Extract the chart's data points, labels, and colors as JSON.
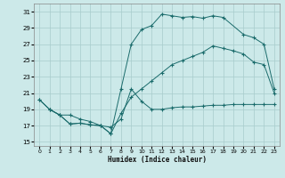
{
  "xlabel": "Humidex (Indice chaleur)",
  "bg_color": "#cce9e9",
  "grid_color": "#a8cccc",
  "line_color": "#1a6b6b",
  "xlim": [
    -0.5,
    23.5
  ],
  "ylim": [
    14.5,
    32
  ],
  "xticks": [
    0,
    1,
    2,
    3,
    4,
    5,
    6,
    7,
    8,
    9,
    10,
    11,
    12,
    13,
    14,
    15,
    16,
    17,
    18,
    19,
    20,
    21,
    22,
    23
  ],
  "yticks": [
    15,
    17,
    19,
    21,
    23,
    25,
    27,
    29,
    31
  ],
  "curve1_x": [
    0,
    1,
    2,
    3,
    4,
    5,
    6,
    7,
    8,
    9,
    10,
    11,
    12,
    13,
    14,
    15,
    16,
    17,
    18,
    20,
    21,
    22,
    23
  ],
  "curve1_y": [
    20.2,
    19.0,
    18.3,
    17.2,
    17.3,
    17.1,
    17.0,
    16.0,
    21.5,
    27.0,
    28.8,
    29.3,
    30.7,
    30.5,
    30.3,
    30.4,
    30.2,
    30.5,
    30.3,
    28.2,
    27.8,
    27.0,
    21.5
  ],
  "curve2_x": [
    0,
    1,
    2,
    3,
    4,
    5,
    6,
    7,
    8,
    9,
    10,
    11,
    12,
    13,
    14,
    15,
    16,
    17,
    18,
    19,
    20,
    21,
    22,
    23
  ],
  "curve2_y": [
    20.2,
    19.0,
    18.3,
    17.2,
    17.3,
    17.1,
    17.0,
    16.0,
    18.5,
    20.5,
    21.5,
    22.5,
    23.5,
    24.5,
    25.0,
    25.5,
    26.0,
    26.8,
    26.5,
    26.2,
    25.8,
    24.8,
    24.5,
    21.0
  ],
  "curve3_x": [
    1,
    2,
    3,
    4,
    5,
    6,
    7,
    8,
    9,
    10,
    11,
    12,
    13,
    14,
    15,
    16,
    17,
    18,
    19,
    20,
    21,
    22,
    23
  ],
  "curve3_y": [
    19.0,
    18.3,
    18.3,
    17.8,
    17.5,
    17.0,
    16.8,
    17.8,
    21.5,
    20.0,
    19.0,
    19.0,
    19.2,
    19.3,
    19.3,
    19.4,
    19.5,
    19.5,
    19.6,
    19.6,
    19.6,
    19.6,
    19.6
  ]
}
